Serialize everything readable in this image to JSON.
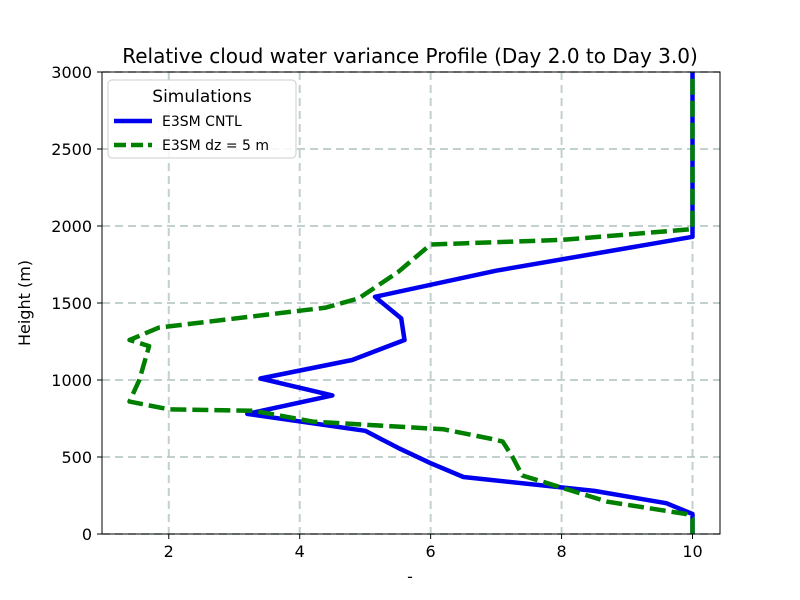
{
  "chart_data": {
    "type": "line",
    "title": "Relative cloud water variance Profile (Day 2.0 to Day 3.0)",
    "xlabel": "-",
    "ylabel": "Height (m)",
    "xlim": [
      0.98,
      10.42
    ],
    "ylim": [
      0,
      3000
    ],
    "xticks": [
      2,
      4,
      6,
      8,
      10
    ],
    "yticks": [
      0,
      500,
      1000,
      1500,
      2000,
      2500,
      3000
    ],
    "grid": true,
    "legend": {
      "title": "Simulations",
      "location": "upper-left"
    },
    "series": [
      {
        "name": "E3SM CNTL",
        "color": "#0000ee",
        "style": "solid",
        "x": [
          10,
          10,
          9.6,
          8.5,
          6.5,
          6.0,
          5.5,
          5.0,
          3.2,
          4.5,
          3.4,
          4.8,
          5.6,
          5.55,
          5.15,
          7.0,
          10,
          10,
          10,
          10
        ],
        "y": [
          0,
          130,
          200,
          280,
          370,
          460,
          560,
          670,
          780,
          900,
          1010,
          1130,
          1260,
          1400,
          1540,
          1710,
          1930,
          2000,
          2500,
          3000
        ]
      },
      {
        "name": "E3SM dz = 5 m",
        "color": "#008000",
        "style": "dashed",
        "x": [
          10,
          10,
          9.9,
          8.7,
          7.4,
          7.25,
          7.1,
          6.9,
          6.2,
          5.0,
          4.2,
          3.3,
          2.0,
          1.4,
          1.55,
          1.7,
          1.4,
          1.85,
          4.4,
          4.9,
          5.5,
          6.0,
          8.0,
          10,
          10,
          10
        ],
        "y": [
          0,
          100,
          130,
          210,
          380,
          500,
          600,
          620,
          680,
          710,
          730,
          800,
          810,
          860,
          1000,
          1220,
          1260,
          1340,
          1470,
          1530,
          1700,
          1880,
          1910,
          1980,
          2500,
          3000
        ]
      }
    ]
  }
}
